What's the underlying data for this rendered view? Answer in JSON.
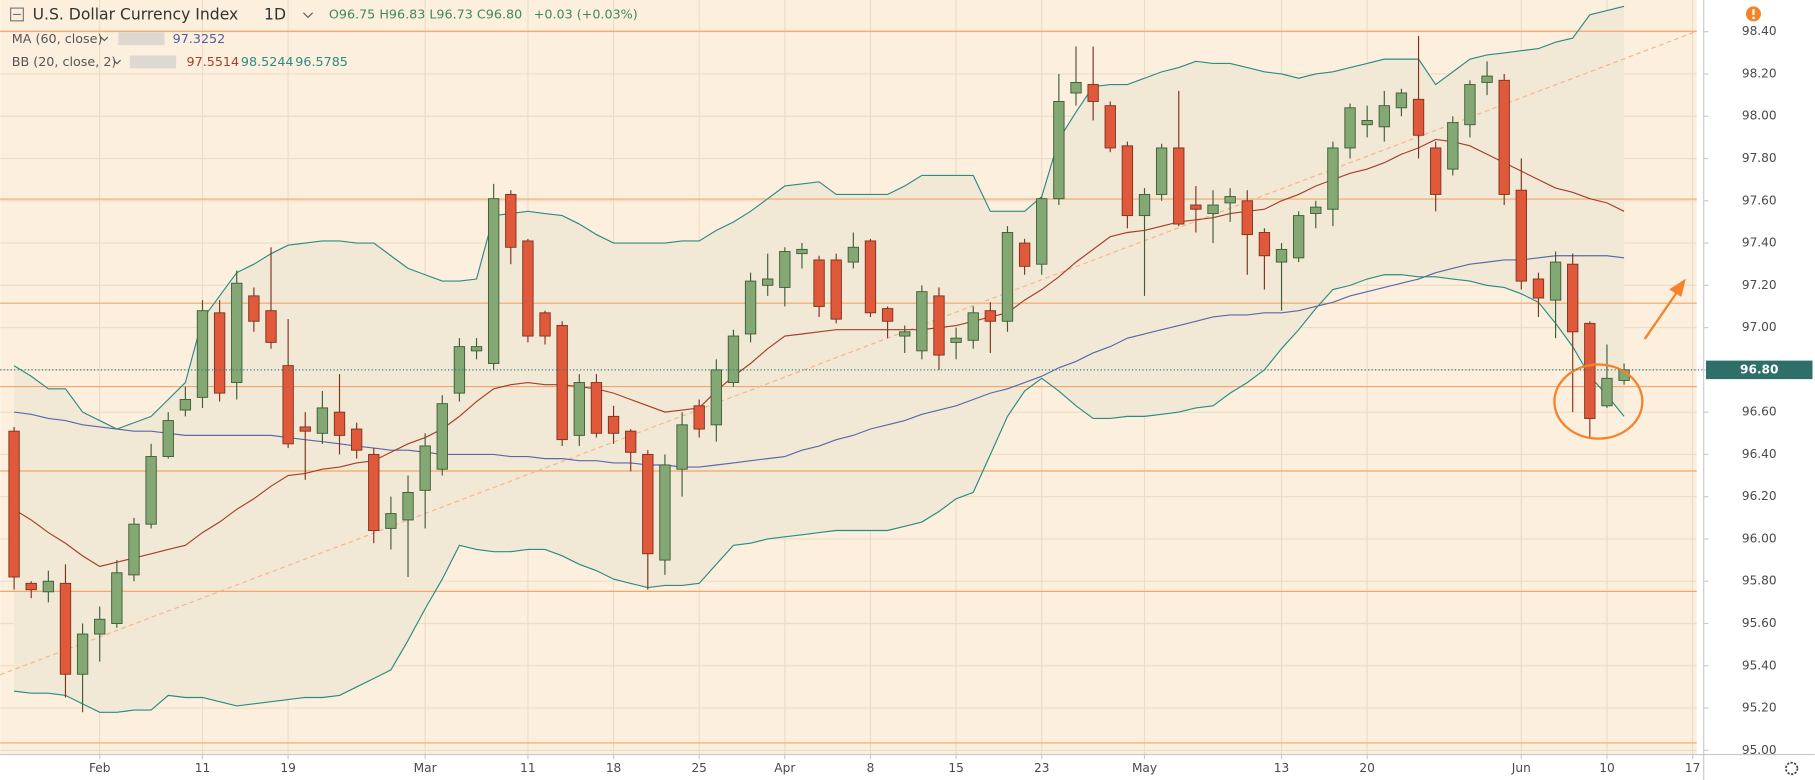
{
  "chart_data": {
    "type": "candlestick",
    "title": "U.S. Dollar Currency Index",
    "interval": "1D",
    "ohlc_text": "O96.75 H96.83 L96.73 C96.80",
    "change_text": "+0.03 (+0.03%)",
    "price_label": "96.80",
    "up_color": "#84a873",
    "down_color": "#e0593a",
    "categories": [
      null,
      null,
      null,
      null,
      null,
      "Feb",
      null,
      null,
      null,
      null,
      null,
      "11",
      null,
      null,
      null,
      null,
      "19",
      null,
      null,
      null,
      null,
      null,
      null,
      null,
      "Mar",
      null,
      null,
      null,
      null,
      null,
      "11",
      null,
      null,
      null,
      null,
      "18",
      null,
      null,
      null,
      null,
      "25",
      null,
      null,
      null,
      null,
      "Apr",
      null,
      null,
      null,
      null,
      "8",
      null,
      null,
      null,
      null,
      "15",
      null,
      null,
      null,
      null,
      "23",
      null,
      null,
      null,
      null,
      null,
      "May",
      null,
      null,
      null,
      null,
      null,
      null,
      null,
      "13",
      null,
      null,
      null,
      null,
      "20",
      null,
      null,
      null,
      null,
      null,
      null,
      null,
      null,
      "Jun",
      null,
      null,
      null,
      null,
      "10",
      null,
      null,
      null,
      null,
      "17"
    ],
    "open": [
      96.51,
      95.79,
      95.75,
      95.79,
      95.36,
      95.55,
      95.6,
      95.83,
      96.07,
      96.39,
      96.61,
      96.67,
      97.07,
      96.74,
      97.15,
      97.08,
      96.82,
      96.53,
      96.5,
      96.6,
      96.52,
      96.4,
      96.05,
      96.09,
      96.23,
      96.33,
      96.69,
      96.89,
      96.83,
      97.63,
      97.41,
      97.07,
      97.01,
      96.49,
      96.74,
      96.58,
      96.51,
      96.4,
      95.9,
      96.33,
      96.63,
      96.54,
      96.74,
      96.97,
      97.2,
      97.19,
      97.35,
      97.32,
      97.32,
      97.31,
      97.41,
      97.09,
      96.96,
      96.89,
      97.15,
      96.93,
      96.94,
      97.08,
      97.03,
      97.4,
      97.3,
      97.61,
      98.11,
      98.15,
      98.05,
      97.86,
      97.53,
      97.63,
      97.85,
      97.58,
      97.54,
      97.59,
      97.6,
      97.45,
      97.31,
      97.33,
      97.54,
      97.56,
      97.85,
      97.96,
      97.95,
      98.04,
      98.08,
      97.85,
      97.75,
      97.96,
      98.16,
      98.17,
      97.65,
      97.23,
      97.13,
      97.3,
      97.02,
      96.63,
      96.75,
      null,
      null,
      null,
      null
    ],
    "high": [
      96.53,
      95.8,
      95.85,
      95.88,
      95.6,
      95.68,
      95.9,
      96.1,
      96.45,
      96.6,
      96.72,
      97.13,
      97.13,
      97.27,
      97.19,
      97.38,
      97.04,
      96.6,
      96.7,
      96.78,
      96.55,
      96.43,
      96.2,
      96.3,
      96.5,
      96.68,
      96.95,
      96.95,
      97.68,
      97.65,
      97.42,
      97.08,
      97.03,
      96.78,
      96.78,
      96.63,
      96.52,
      96.42,
      96.4,
      96.6,
      96.66,
      96.85,
      96.99,
      97.26,
      97.35,
      97.38,
      97.4,
      97.34,
      97.35,
      97.45,
      97.42,
      97.1,
      97.01,
      97.2,
      97.19,
      97.0,
      97.1,
      97.12,
      97.48,
      97.42,
      97.62,
      98.2,
      98.33,
      98.33,
      98.07,
      97.88,
      97.66,
      97.87,
      98.12,
      97.67,
      97.65,
      97.66,
      97.65,
      97.47,
      97.4,
      97.55,
      97.6,
      97.88,
      98.06,
      98.05,
      98.12,
      98.13,
      98.38,
      97.88,
      98.0,
      98.17,
      98.26,
      98.2,
      97.8,
      97.26,
      97.36,
      97.35,
      97.03,
      96.92,
      96.83,
      null,
      null,
      null,
      null
    ],
    "low": [
      95.76,
      95.72,
      95.7,
      95.25,
      95.18,
      95.42,
      95.58,
      95.8,
      96.05,
      96.38,
      96.58,
      96.62,
      96.65,
      96.66,
      96.98,
      96.9,
      96.43,
      96.28,
      96.45,
      96.4,
      96.38,
      95.98,
      95.95,
      95.82,
      96.05,
      96.3,
      96.65,
      96.85,
      96.8,
      97.3,
      96.93,
      96.92,
      96.44,
      96.44,
      96.48,
      96.45,
      96.32,
      95.76,
      95.83,
      96.2,
      96.48,
      96.46,
      96.72,
      96.93,
      97.15,
      97.1,
      97.28,
      97.05,
      97.02,
      97.28,
      97.05,
      96.95,
      96.88,
      96.85,
      96.8,
      96.85,
      96.9,
      96.88,
      96.98,
      97.25,
      97.25,
      97.58,
      98.05,
      97.98,
      97.83,
      97.47,
      97.15,
      97.6,
      97.48,
      97.45,
      97.4,
      97.5,
      97.25,
      97.18,
      97.08,
      97.31,
      97.47,
      97.48,
      97.8,
      97.9,
      97.88,
      98.0,
      97.8,
      97.55,
      97.72,
      97.9,
      98.1,
      97.58,
      97.18,
      97.05,
      96.95,
      96.6,
      96.48,
      96.62,
      96.73,
      null,
      null,
      null,
      null
    ],
    "close": [
      95.82,
      95.76,
      95.8,
      95.36,
      95.55,
      95.62,
      95.84,
      96.07,
      96.39,
      96.56,
      96.66,
      97.08,
      96.69,
      97.21,
      97.03,
      96.93,
      96.45,
      96.51,
      96.62,
      96.49,
      96.42,
      96.04,
      96.12,
      96.22,
      96.44,
      96.64,
      96.91,
      96.91,
      97.61,
      97.38,
      96.96,
      96.96,
      96.47,
      96.74,
      96.5,
      96.5,
      96.41,
      95.93,
      96.35,
      96.54,
      96.52,
      96.8,
      96.96,
      97.22,
      97.23,
      97.36,
      97.37,
      97.1,
      97.04,
      97.38,
      97.07,
      97.03,
      96.98,
      97.17,
      96.87,
      96.95,
      97.07,
      97.03,
      97.45,
      97.29,
      97.61,
      98.07,
      98.16,
      98.07,
      97.85,
      97.53,
      97.63,
      97.85,
      97.49,
      97.56,
      97.58,
      97.62,
      97.44,
      97.34,
      97.37,
      97.53,
      97.57,
      97.85,
      98.04,
      97.98,
      98.05,
      98.11,
      97.91,
      97.63,
      97.97,
      98.15,
      98.19,
      97.63,
      97.22,
      97.14,
      97.31,
      96.98,
      96.57,
      96.76,
      96.8,
      null,
      null,
      null,
      null
    ],
    "indicators": [
      {
        "name": "MA (60, close)",
        "legend_values": [
          "97.3252"
        ],
        "legend_colors": [
          "#4b5fa6"
        ],
        "lines": [
          {
            "color": "#5a69a8",
            "values": [
              96.6,
              96.59,
              96.57,
              96.56,
              96.54,
              96.53,
              96.52,
              96.51,
              96.51,
              96.5,
              96.49,
              96.49,
              96.49,
              96.49,
              96.49,
              96.49,
              96.48,
              96.47,
              96.46,
              96.45,
              96.44,
              96.43,
              96.42,
              96.42,
              96.41,
              96.4,
              96.4,
              96.4,
              96.4,
              96.39,
              96.39,
              96.38,
              96.38,
              96.37,
              96.37,
              96.36,
              96.36,
              96.35,
              96.35,
              96.34,
              96.34,
              96.35,
              96.36,
              96.37,
              96.38,
              96.39,
              96.42,
              96.44,
              96.47,
              96.49,
              96.52,
              96.54,
              96.56,
              96.59,
              96.61,
              96.63,
              96.66,
              96.69,
              96.71,
              96.74,
              96.77,
              96.81,
              96.84,
              96.88,
              96.91,
              96.95,
              96.97,
              96.99,
              97.01,
              97.03,
              97.05,
              97.06,
              97.06,
              97.07,
              97.07,
              97.08,
              97.1,
              97.12,
              97.15,
              97.17,
              97.19,
              97.21,
              97.23,
              97.26,
              97.28,
              97.3,
              97.31,
              97.32,
              97.32,
              97.33,
              97.34,
              97.34,
              97.34,
              97.34,
              97.33,
              null,
              null,
              null,
              null
            ]
          }
        ]
      },
      {
        "name": "BB (20, close, 2)",
        "legend_values": [
          "97.5514",
          "98.5244",
          "96.5785"
        ],
        "legend_colors": [
          "#a3402a",
          "#2b8c82",
          "#2b8c82"
        ],
        "lines": [
          {
            "color": "#a3402a",
            "values": [
              96.14,
              96.09,
              96.03,
              95.98,
              95.92,
              95.87,
              95.89,
              95.91,
              95.93,
              95.95,
              95.97,
              96.03,
              96.08,
              96.14,
              96.19,
              96.25,
              96.3,
              96.31,
              96.33,
              96.34,
              96.36,
              96.37,
              96.41,
              96.45,
              96.48,
              96.52,
              96.58,
              96.65,
              96.71,
              96.73,
              96.74,
              96.73,
              96.73,
              96.72,
              96.71,
              96.69,
              96.66,
              96.63,
              96.6,
              96.61,
              96.62,
              96.7,
              96.77,
              96.83,
              96.9,
              96.96,
              96.97,
              96.98,
              96.99,
              96.99,
              96.99,
              96.99,
              96.99,
              96.99,
              97.0,
              97.01,
              97.03,
              97.05,
              97.07,
              97.13,
              97.18,
              97.24,
              97.31,
              97.37,
              97.43,
              97.45,
              97.46,
              97.48,
              97.5,
              97.51,
              97.52,
              97.54,
              97.55,
              97.56,
              97.6,
              97.63,
              97.67,
              97.7,
              97.73,
              97.75,
              97.78,
              97.82,
              97.85,
              97.89,
              97.88,
              97.86,
              97.82,
              97.78,
              97.74,
              97.7,
              97.66,
              97.64,
              97.61,
              97.59,
              97.55,
              null,
              null,
              null,
              null
            ]
          },
          {
            "color": "#2b8c82",
            "values": [
              96.82,
              96.77,
              96.71,
              96.71,
              96.6,
              96.56,
              96.52,
              96.55,
              96.58,
              96.66,
              96.74,
              97.04,
              97.15,
              97.26,
              97.3,
              97.35,
              97.39,
              97.4,
              97.41,
              97.41,
              97.4,
              97.4,
              97.34,
              97.28,
              97.25,
              97.22,
              97.22,
              97.23,
              97.53,
              97.54,
              97.55,
              97.54,
              97.53,
              97.49,
              97.44,
              97.4,
              97.4,
              97.4,
              97.4,
              97.41,
              97.41,
              97.46,
              97.5,
              97.55,
              97.61,
              97.67,
              97.68,
              97.69,
              97.63,
              97.63,
              97.63,
              97.63,
              97.67,
              97.72,
              97.72,
              97.72,
              97.72,
              97.55,
              97.55,
              97.55,
              97.62,
              97.89,
              98.02,
              98.14,
              98.15,
              98.15,
              98.18,
              98.21,
              98.23,
              98.26,
              98.25,
              98.25,
              98.23,
              98.21,
              98.2,
              98.18,
              98.2,
              98.21,
              98.23,
              98.25,
              98.27,
              98.27,
              98.27,
              98.15,
              98.21,
              98.27,
              98.29,
              98.3,
              98.31,
              98.32,
              98.35,
              98.37,
              98.48,
              98.5,
              98.52,
              null,
              null,
              null,
              null
            ]
          },
          {
            "color": "#2b8c82",
            "values": [
              95.28,
              95.27,
              95.27,
              95.26,
              95.22,
              95.18,
              95.18,
              95.19,
              95.19,
              95.26,
              95.25,
              95.25,
              95.23,
              95.21,
              95.22,
              95.23,
              95.24,
              95.25,
              95.25,
              95.26,
              95.3,
              95.34,
              95.38,
              95.52,
              95.67,
              95.81,
              95.97,
              95.95,
              95.94,
              95.94,
              95.95,
              95.95,
              95.92,
              95.88,
              95.85,
              95.81,
              95.79,
              95.77,
              95.78,
              95.78,
              95.79,
              95.88,
              95.97,
              95.98,
              96.0,
              96.01,
              96.02,
              96.03,
              96.04,
              96.04,
              96.04,
              96.04,
              96.06,
              96.08,
              96.13,
              96.19,
              96.22,
              96.4,
              96.58,
              96.7,
              96.76,
              96.7,
              96.63,
              96.57,
              96.57,
              96.58,
              96.58,
              96.59,
              96.6,
              96.62,
              96.63,
              96.69,
              96.74,
              96.8,
              96.9,
              96.99,
              97.09,
              97.18,
              97.2,
              97.23,
              97.25,
              97.25,
              97.24,
              97.24,
              97.23,
              97.22,
              97.2,
              97.19,
              97.16,
              97.12,
              97.02,
              96.91,
              96.77,
              96.68,
              96.58,
              null,
              null,
              null,
              null
            ]
          }
        ]
      }
    ],
    "ylim": [
      94.98,
      98.55
    ],
    "yticks": [
      {
        "value": 95,
        "label": "95.00"
      },
      {
        "value": 95.2,
        "label": "95.20"
      },
      {
        "value": 95.4,
        "label": "95.40"
      },
      {
        "value": 95.6,
        "label": "95.60"
      },
      {
        "value": 95.8,
        "label": "95.80"
      },
      {
        "value": 96,
        "label": "96.00"
      },
      {
        "value": 96.2,
        "label": "96.20"
      },
      {
        "value": 96.4,
        "label": "96.40"
      },
      {
        "value": 96.6,
        "label": "96.60"
      },
      {
        "value": 96.8,
        "label": "96.80"
      },
      {
        "value": 97,
        "label": "97.00"
      },
      {
        "value": 97.2,
        "label": "97.20"
      },
      {
        "value": 97.4,
        "label": "97.40"
      },
      {
        "value": 97.6,
        "label": "97.60"
      },
      {
        "value": 97.8,
        "label": "97.80"
      },
      {
        "value": 98,
        "label": "98.00"
      },
      {
        "value": 98.2,
        "label": "98.20"
      },
      {
        "value": 98.4,
        "label": "98.40"
      }
    ],
    "grid": true
  }
}
